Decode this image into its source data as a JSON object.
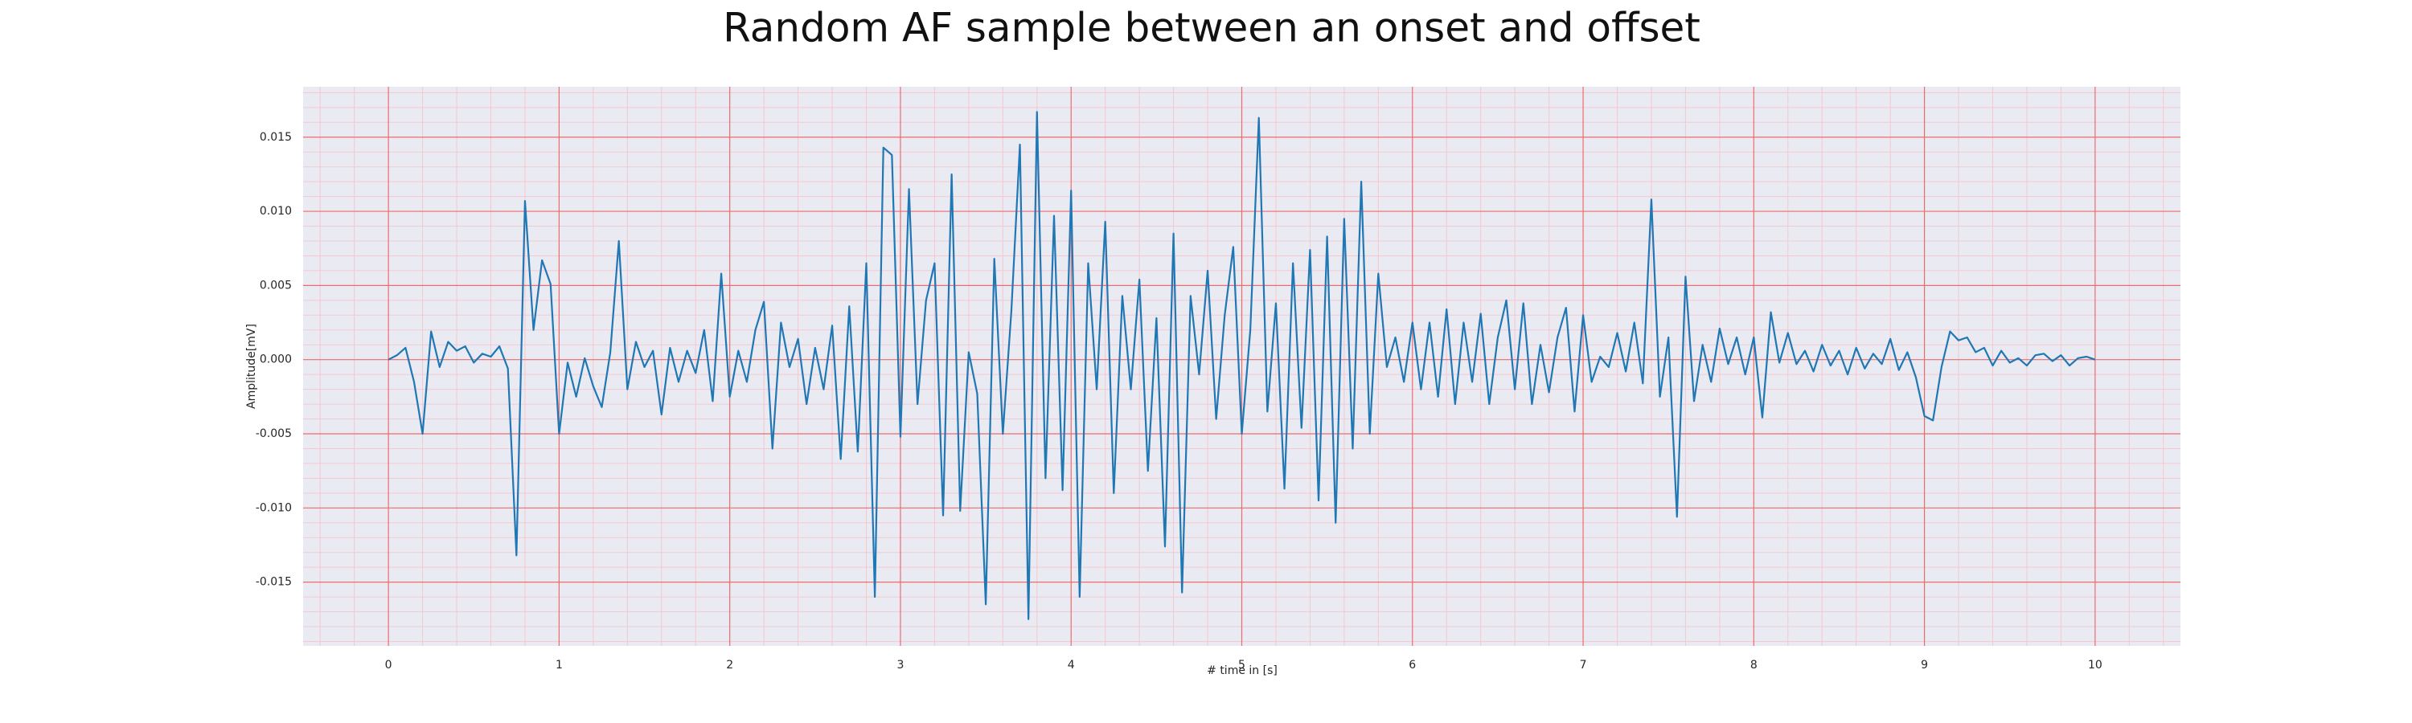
{
  "chart_data": {
    "type": "line",
    "title": "Random AF sample between an onset and offset",
    "xlabel": "# time in [s]",
    "ylabel": "Amplitude[mV]",
    "x": [
      0,
      0.05,
      0.1,
      0.15,
      0.2,
      0.25,
      0.3,
      0.35,
      0.4,
      0.45,
      0.5,
      0.55,
      0.6,
      0.65,
      0.7,
      0.75,
      0.8,
      0.85,
      0.9,
      0.95,
      1,
      1.05,
      1.1,
      1.15,
      1.2,
      1.25,
      1.3,
      1.35,
      1.4,
      1.45,
      1.5,
      1.55,
      1.6,
      1.65,
      1.7,
      1.75,
      1.8,
      1.85,
      1.9,
      1.95,
      2,
      2.05,
      2.1,
      2.15,
      2.2,
      2.25,
      2.3,
      2.35,
      2.4,
      2.45,
      2.5,
      2.55,
      2.6,
      2.65,
      2.7,
      2.75,
      2.8,
      2.85,
      2.9,
      2.95,
      3,
      3.05,
      3.1,
      3.15,
      3.2,
      3.25,
      3.3,
      3.35,
      3.4,
      3.45,
      3.5,
      3.55,
      3.6,
      3.65,
      3.7,
      3.75,
      3.8,
      3.85,
      3.9,
      3.95,
      4,
      4.05,
      4.1,
      4.15,
      4.2,
      4.25,
      4.3,
      4.35,
      4.4,
      4.45,
      4.5,
      4.55,
      4.6,
      4.65,
      4.7,
      4.75,
      4.8,
      4.85,
      4.9,
      4.95,
      5,
      5.05,
      5.1,
      5.15,
      5.2,
      5.25,
      5.3,
      5.35,
      5.4,
      5.45,
      5.5,
      5.55,
      5.6,
      5.65,
      5.7,
      5.75,
      5.8,
      5.85,
      5.9,
      5.95,
      6,
      6.05,
      6.1,
      6.15,
      6.2,
      6.25,
      6.3,
      6.35,
      6.4,
      6.45,
      6.5,
      6.55,
      6.6,
      6.65,
      6.7,
      6.75,
      6.8,
      6.85,
      6.9,
      6.95,
      7,
      7.05,
      7.1,
      7.15,
      7.2,
      7.25,
      7.3,
      7.35,
      7.4,
      7.45,
      7.5,
      7.55,
      7.6,
      7.65,
      7.7,
      7.75,
      7.8,
      7.85,
      7.9,
      7.95,
      8,
      8.05,
      8.1,
      8.15,
      8.2,
      8.25,
      8.3,
      8.35,
      8.4,
      8.45,
      8.5,
      8.55,
      8.6,
      8.65,
      8.7,
      8.75,
      8.8,
      8.85,
      8.9,
      8.95,
      9,
      9.05,
      9.1,
      9.15,
      9.2,
      9.25,
      9.3,
      9.35,
      9.4,
      9.45,
      9.5,
      9.55,
      9.6,
      9.65,
      9.7,
      9.75,
      9.8,
      9.85,
      9.9,
      9.95,
      10
    ],
    "series": [
      {
        "color": "#1f77b4",
        "values": [
          0,
          0.0003,
          0.0008,
          -0.0015,
          -0.005,
          0.0019,
          -0.0005,
          0.0012,
          0.0006,
          0.0009,
          -0.0002,
          0.0004,
          0.0002,
          0.0009,
          -0.0006,
          -0.0132,
          0.0107,
          0.002,
          0.0067,
          0.0051,
          -0.005,
          -0.0002,
          -0.0025,
          0.0001,
          -0.0018,
          -0.0032,
          0.0005,
          0.008,
          -0.002,
          0.0012,
          -0.0005,
          0.0006,
          -0.0037,
          0.0008,
          -0.0015,
          0.0006,
          -0.0009,
          0.002,
          -0.0028,
          0.0058,
          -0.0025,
          0.0006,
          -0.0015,
          0.002,
          0.0039,
          -0.006,
          0.0025,
          -0.0005,
          0.0014,
          -0.003,
          0.0008,
          -0.002,
          0.0023,
          -0.0067,
          0.0036,
          -0.0062,
          0.0065,
          -0.016,
          0.0143,
          0.0138,
          -0.0052,
          0.0115,
          -0.003,
          0.004,
          0.0065,
          -0.0105,
          0.0125,
          -0.0102,
          0.0005,
          -0.0023,
          -0.0165,
          0.0068,
          -0.005,
          0.0033,
          0.0145,
          -0.0175,
          0.0167,
          -0.008,
          0.0097,
          -0.0088,
          0.0114,
          -0.016,
          0.0065,
          -0.002,
          0.0093,
          -0.009,
          0.0043,
          -0.002,
          0.0054,
          -0.0075,
          0.0028,
          -0.0126,
          0.0085,
          -0.0157,
          0.0043,
          -0.001,
          0.006,
          -0.004,
          0.003,
          0.0076,
          -0.005,
          0.002,
          0.0163,
          -0.0035,
          0.0038,
          -0.0087,
          0.0065,
          -0.0046,
          0.0074,
          -0.0095,
          0.0083,
          -0.011,
          0.0095,
          -0.006,
          0.012,
          -0.005,
          0.0058,
          -0.0005,
          0.0015,
          -0.0015,
          0.0025,
          -0.002,
          0.0025,
          -0.0025,
          0.0034,
          -0.003,
          0.0025,
          -0.0015,
          0.0031,
          -0.003,
          0.0015,
          0.004,
          -0.002,
          0.0038,
          -0.003,
          0.001,
          -0.0022,
          0.0015,
          0.0035,
          -0.0035,
          0.003,
          -0.0015,
          0.0002,
          -0.0005,
          0.0018,
          -0.0008,
          0.0025,
          -0.0016,
          0.0108,
          -0.0025,
          0.0015,
          -0.0106,
          0.0056,
          -0.0028,
          0.001,
          -0.0015,
          0.0021,
          -0.0003,
          0.0015,
          -0.001,
          0.0015,
          -0.0039,
          0.0032,
          -0.0002,
          0.0018,
          -0.0003,
          0.0006,
          -0.0008,
          0.001,
          -0.0004,
          0.0006,
          -0.001,
          0.0008,
          -0.0006,
          0.0004,
          -0.0003,
          0.0014,
          -0.0007,
          0.0005,
          -0.0012,
          -0.0038,
          -0.0041,
          -0.0005,
          0.0019,
          0.0013,
          0.0015,
          0.0005,
          0.0008,
          -0.0004,
          0.0006,
          -0.0002,
          0.0001,
          -0.0004,
          0.0003,
          0.0004,
          -0.0001,
          0.0003,
          -0.0004,
          0.0001,
          0.0002,
          0
        ]
      }
    ],
    "xlim": [
      -0.5,
      10.5
    ],
    "ylim": [
      -0.0193,
      0.0184
    ],
    "xticks": [
      0,
      1,
      2,
      3,
      4,
      5,
      6,
      7,
      8,
      9,
      10
    ],
    "yticks": [
      -0.015,
      {
        "value": -0.01,
        "label": "-0.010"
      },
      -0.005,
      {
        "value": 0,
        "label": "0.000"
      },
      0.005,
      {
        "value": 0.01,
        "label": "0.010"
      },
      0.015
    ],
    "grid": true,
    "minor_grid": true
  }
}
